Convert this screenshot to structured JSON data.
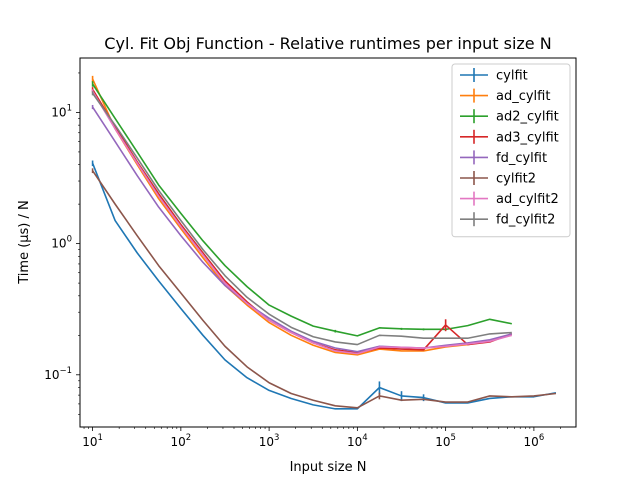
{
  "chart_data": {
    "type": "line",
    "title": "Cyl. Fit Obj Function - Relative runtimes per input size N",
    "xlabel": "Input size N",
    "ylabel": "Time (µs) / N",
    "xscale": "log",
    "yscale": "log",
    "xlim": [
      7.2,
      3000000
    ],
    "ylim": [
      0.04,
      26
    ],
    "xticks": [
      {
        "value": 10,
        "base": "10",
        "exp": "1"
      },
      {
        "value": 100,
        "base": "10",
        "exp": "2"
      },
      {
        "value": 1000,
        "base": "10",
        "exp": "3"
      },
      {
        "value": 10000,
        "base": "10",
        "exp": "4"
      },
      {
        "value": 100000,
        "base": "10",
        "exp": "5"
      },
      {
        "value": 1000000,
        "base": "10",
        "exp": "6"
      }
    ],
    "yticks": [
      {
        "value": 0.1,
        "base": "10",
        "exp": "−1"
      },
      {
        "value": 1,
        "base": "10",
        "exp": "0"
      },
      {
        "value": 10,
        "base": "10",
        "exp": "1"
      }
    ],
    "legend_position": "top-right",
    "grid": false,
    "series": [
      {
        "name": "cylfit",
        "color": "#1f77b4",
        "x": [
          10,
          18,
          32,
          56,
          100,
          178,
          316,
          562,
          1000,
          1778,
          3162,
          5623,
          10000,
          17783,
          31623,
          56234,
          100000,
          177828,
          316228,
          562341,
          1000000,
          1778279
        ],
        "y": [
          4.1,
          1.5,
          0.85,
          0.52,
          0.32,
          0.2,
          0.13,
          0.095,
          0.076,
          0.066,
          0.059,
          0.055,
          0.055,
          0.08,
          0.069,
          0.067,
          0.061,
          0.061,
          0.066,
          0.068,
          0.068,
          0.073
        ],
        "err": [
          0.2,
          0,
          0,
          0,
          0,
          0,
          0,
          0,
          0,
          0,
          0,
          0,
          0,
          0.009,
          0.006,
          0.004,
          0,
          0,
          0,
          0,
          0,
          0
        ]
      },
      {
        "name": "ad_cylfit",
        "color": "#ff7f0e",
        "x": [
          10,
          18,
          32,
          56,
          100,
          178,
          316,
          562,
          1000,
          1778,
          3162,
          5623,
          10000,
          17783,
          31623,
          56234,
          100000,
          177828,
          316228,
          562341
        ],
        "y": [
          18.0,
          7.5,
          4.0,
          2.2,
          1.3,
          0.78,
          0.48,
          0.34,
          0.25,
          0.2,
          0.168,
          0.148,
          0.142,
          0.157,
          0.152,
          0.152,
          0.163,
          0.17,
          0.18,
          0.205
        ],
        "err": [
          1.0,
          0,
          0,
          0,
          0,
          0,
          0,
          0,
          0,
          0,
          0,
          0,
          0,
          0,
          0,
          0,
          0,
          0,
          0,
          0
        ]
      },
      {
        "name": "ad2_cylfit",
        "color": "#2ca02c",
        "x": [
          10,
          18,
          32,
          56,
          100,
          178,
          316,
          562,
          1000,
          1778,
          3162,
          5623,
          10000,
          17783,
          31623,
          56234,
          100000,
          177828,
          316228,
          562341
        ],
        "y": [
          16.5,
          9.0,
          5.0,
          2.8,
          1.7,
          1.05,
          0.68,
          0.47,
          0.34,
          0.28,
          0.235,
          0.215,
          0.198,
          0.228,
          0.224,
          0.222,
          0.222,
          0.237,
          0.265,
          0.245
        ],
        "err": [
          0.8,
          0,
          0,
          0,
          0,
          0,
          0,
          0,
          0,
          0,
          0,
          0.005,
          0,
          0,
          0.004,
          0.004,
          0.004,
          0,
          0,
          0
        ]
      },
      {
        "name": "ad3_cylfit",
        "color": "#d62728",
        "x": [
          10,
          18,
          32,
          56,
          100,
          178,
          316,
          562,
          1000,
          1778,
          3162,
          5623,
          10000,
          17783,
          31623,
          56234,
          100000,
          177828,
          316228,
          562341
        ],
        "y": [
          15.0,
          7.8,
          4.2,
          2.4,
          1.4,
          0.85,
          0.52,
          0.36,
          0.26,
          0.21,
          0.175,
          0.155,
          0.147,
          0.16,
          0.157,
          0.155,
          0.24,
          0.17,
          0.178,
          0.205
        ],
        "err": [
          0.6,
          0,
          0,
          0,
          0,
          0,
          0,
          0,
          0,
          0,
          0,
          0,
          0,
          0,
          0,
          0,
          0.025,
          0,
          0,
          0
        ]
      },
      {
        "name": "fd_cylfit",
        "color": "#9467bd",
        "x": [
          10,
          18,
          32,
          56,
          100,
          178,
          316,
          562,
          1000,
          1778,
          3162,
          5623,
          10000,
          17783,
          31623,
          56234,
          100000,
          177828,
          316228,
          562341
        ],
        "y": [
          11.0,
          6.0,
          3.3,
          1.9,
          1.15,
          0.72,
          0.48,
          0.35,
          0.27,
          0.215,
          0.18,
          0.16,
          0.15,
          0.165,
          0.162,
          0.16,
          0.168,
          0.175,
          0.185,
          0.205
        ],
        "err": [
          0.4,
          0,
          0,
          0,
          0,
          0,
          0,
          0,
          0,
          0,
          0,
          0,
          0,
          0,
          0,
          0,
          0,
          0,
          0,
          0
        ]
      },
      {
        "name": "cylfit2",
        "color": "#8c564b",
        "x": [
          10,
          18,
          32,
          56,
          100,
          178,
          316,
          562,
          1000,
          1778,
          3162,
          5623,
          10000,
          17783,
          31623,
          56234,
          100000,
          177828,
          316228,
          562341,
          1000000,
          1778279
        ],
        "y": [
          3.6,
          2.0,
          1.15,
          0.68,
          0.42,
          0.26,
          0.165,
          0.115,
          0.087,
          0.072,
          0.064,
          0.058,
          0.056,
          0.069,
          0.064,
          0.065,
          0.062,
          0.062,
          0.069,
          0.068,
          0.069,
          0.072
        ],
        "err": [
          0.15,
          0,
          0,
          0,
          0,
          0,
          0,
          0,
          0,
          0,
          0,
          0,
          0,
          0.004,
          0,
          0,
          0,
          0,
          0,
          0,
          0,
          0
        ]
      },
      {
        "name": "ad_cylfit2",
        "color": "#e377c2",
        "x": [
          10,
          18,
          32,
          56,
          100,
          178,
          316,
          562,
          1000,
          1778,
          3162,
          5623,
          10000,
          17783,
          31623,
          56234,
          100000,
          177828,
          316228,
          562341
        ],
        "y": [
          14.5,
          7.5,
          4.1,
          2.3,
          1.35,
          0.82,
          0.5,
          0.35,
          0.26,
          0.21,
          0.175,
          0.152,
          0.145,
          0.163,
          0.162,
          0.16,
          0.165,
          0.172,
          0.18,
          0.2
        ],
        "err": [
          0.5,
          0,
          0,
          0,
          0,
          0,
          0,
          0,
          0,
          0,
          0,
          0,
          0,
          0,
          0,
          0,
          0,
          0,
          0,
          0
        ]
      },
      {
        "name": "fd_cylfit2",
        "color": "#7f7f7f",
        "x": [
          10,
          18,
          32,
          56,
          100,
          178,
          316,
          562,
          1000,
          1778,
          3162,
          5623,
          10000,
          17783,
          31623,
          56234,
          100000,
          177828,
          316228,
          562341
        ],
        "y": [
          14.0,
          8.0,
          4.5,
          2.55,
          1.5,
          0.9,
          0.57,
          0.39,
          0.29,
          0.23,
          0.195,
          0.178,
          0.17,
          0.2,
          0.197,
          0.19,
          0.19,
          0.19,
          0.205,
          0.21
        ],
        "err": [
          0.5,
          0,
          0,
          0,
          0,
          0,
          0,
          0,
          0,
          0,
          0,
          0,
          0,
          0,
          0,
          0,
          0,
          0,
          0,
          0
        ]
      }
    ]
  }
}
